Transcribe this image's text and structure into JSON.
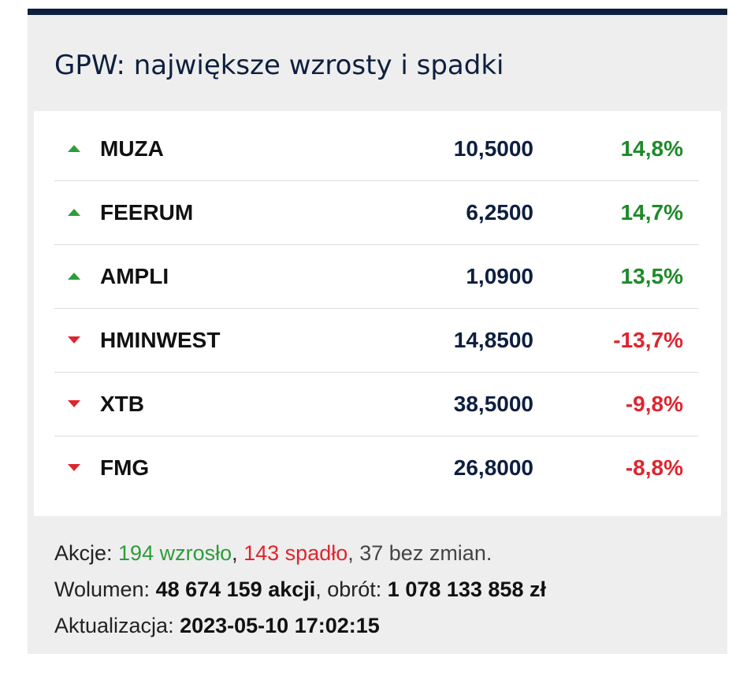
{
  "widget": {
    "title": "GPW: największe wzrosty i spadki"
  },
  "rows": [
    {
      "ticker": "MUZA",
      "price": "10,5000",
      "change": "14,8%",
      "direction": "up"
    },
    {
      "ticker": "FEERUM",
      "price": "6,2500",
      "change": "14,7%",
      "direction": "up"
    },
    {
      "ticker": "AMPLI",
      "price": "1,0900",
      "change": "13,5%",
      "direction": "up"
    },
    {
      "ticker": "HMINWEST",
      "price": "14,8500",
      "change": "-13,7%",
      "direction": "down"
    },
    {
      "ticker": "XTB",
      "price": "38,5000",
      "change": "-9,8%",
      "direction": "down"
    },
    {
      "ticker": "FMG",
      "price": "26,8000",
      "change": "-8,8%",
      "direction": "down"
    }
  ],
  "footer": {
    "stocks_label": "Akcje: ",
    "rose": "194 wzrosło",
    "sep1": ", ",
    "fell": "143 spadło",
    "unchanged": ", 37 bez zmian.",
    "volume_label": "Wolumen: ",
    "volume_value": "48 674 159 akcji",
    "turnover_label": ", obrót: ",
    "turnover_value": "1 078 133 858 zł",
    "update_label": "Aktualizacja: ",
    "update_value": "2023-05-10 17:02:15"
  },
  "colors": {
    "header_bar": "#0e1f3e",
    "up": "#1e8a29",
    "down": "#e0242f",
    "panel_bg": "#eeeeee"
  },
  "icons": {
    "up": "triangle-up-icon",
    "down": "triangle-down-icon"
  }
}
